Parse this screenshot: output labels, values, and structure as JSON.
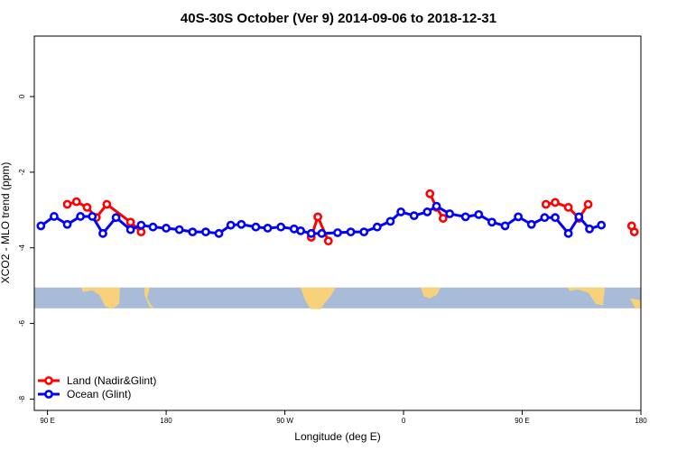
{
  "chart_data": {
    "type": "line",
    "title": "40S-30S October (Ver 9)   2014-09-06 to 2018-12-31",
    "xlabel": "Longitude (deg E)",
    "ylabel": "XCO2 - MLO trend (ppm)",
    "xlim": [
      88,
      180
    ],
    "ylim": [
      -8.3,
      1.6
    ],
    "x_ticks": [
      {
        "value": 90,
        "label": "90 E"
      },
      {
        "value": 108,
        "label": "180"
      },
      {
        "value": 126,
        "label": "90 W"
      },
      {
        "value": 144,
        "label": "0"
      },
      {
        "value": 162,
        "label": "90 E"
      },
      {
        "value": 180,
        "label": "180"
      }
    ],
    "y_ticks": [
      {
        "value": 0,
        "label": "0"
      },
      {
        "value": -2,
        "label": "-2"
      },
      {
        "value": -4,
        "label": "-4"
      },
      {
        "value": -6,
        "label": "-6"
      },
      {
        "value": -8,
        "label": "-8"
      }
    ],
    "series": [
      {
        "name": "Land (Nadir&Glint)",
        "color": "#ff0000",
        "segments": [
          [
            [
              93.0,
              -2.85
            ],
            [
              94.4,
              -2.78
            ],
            [
              96.0,
              -2.93
            ],
            [
              97.4,
              -3.2
            ],
            [
              99.0,
              -2.85
            ],
            [
              102.6,
              -3.32
            ],
            [
              104.2,
              -3.58
            ]
          ],
          [
            [
              130.0,
              -3.72
            ],
            [
              131.0,
              -3.18
            ],
            [
              132.6,
              -3.82
            ]
          ],
          [
            [
              148.0,
              -2.57
            ],
            [
              149.0,
              -2.93
            ],
            [
              150.0,
              -3.22
            ]
          ],
          [
            [
              165.6,
              -2.85
            ],
            [
              167.0,
              -2.8
            ],
            [
              169.0,
              -2.93
            ],
            [
              170.6,
              -3.22
            ],
            [
              172.0,
              -2.85
            ]
          ],
          [
            [
              178.6,
              -3.42
            ],
            [
              179.0,
              -3.58
            ]
          ]
        ]
      },
      {
        "name": "Ocean (Glint)",
        "color": "#0000ff",
        "points": [
          [
            89.0,
            -3.42
          ],
          [
            91.0,
            -3.17
          ],
          [
            93.0,
            -3.38
          ],
          [
            95.0,
            -3.17
          ],
          [
            96.8,
            -3.17
          ],
          [
            98.4,
            -3.62
          ],
          [
            100.4,
            -3.2
          ],
          [
            102.6,
            -3.52
          ],
          [
            104.2,
            -3.4
          ],
          [
            106.0,
            -3.45
          ],
          [
            108.0,
            -3.48
          ],
          [
            110.0,
            -3.52
          ],
          [
            112.0,
            -3.58
          ],
          [
            114.0,
            -3.58
          ],
          [
            116.0,
            -3.62
          ],
          [
            117.8,
            -3.4
          ],
          [
            119.4,
            -3.38
          ],
          [
            121.6,
            -3.45
          ],
          [
            123.4,
            -3.48
          ],
          [
            125.4,
            -3.45
          ],
          [
            127.4,
            -3.5
          ],
          [
            128.4,
            -3.55
          ],
          [
            130.0,
            -3.62
          ],
          [
            131.6,
            -3.62
          ],
          [
            134.0,
            -3.6
          ],
          [
            136.0,
            -3.58
          ],
          [
            138.0,
            -3.58
          ],
          [
            140.0,
            -3.45
          ],
          [
            142.0,
            -3.3
          ],
          [
            143.6,
            -3.05
          ],
          [
            145.6,
            -3.15
          ],
          [
            147.6,
            -3.05
          ],
          [
            149.0,
            -2.9
          ],
          [
            151.0,
            -3.1
          ],
          [
            153.4,
            -3.18
          ],
          [
            155.4,
            -3.12
          ],
          [
            157.4,
            -3.32
          ],
          [
            159.4,
            -3.42
          ],
          [
            161.4,
            -3.18
          ],
          [
            163.4,
            -3.38
          ],
          [
            165.4,
            -3.2
          ],
          [
            167.0,
            -3.2
          ],
          [
            169.0,
            -3.62
          ],
          [
            170.6,
            -3.18
          ],
          [
            172.2,
            -3.5
          ],
          [
            174.0,
            -3.4
          ]
        ]
      }
    ],
    "map_strip": {
      "ymin": -5.6,
      "ymax": -5.05,
      "ocean_color": "#a8bcd8",
      "land_color": "#f7d27a"
    },
    "legend": {
      "position": "bottom-left"
    },
    "grid": false
  }
}
